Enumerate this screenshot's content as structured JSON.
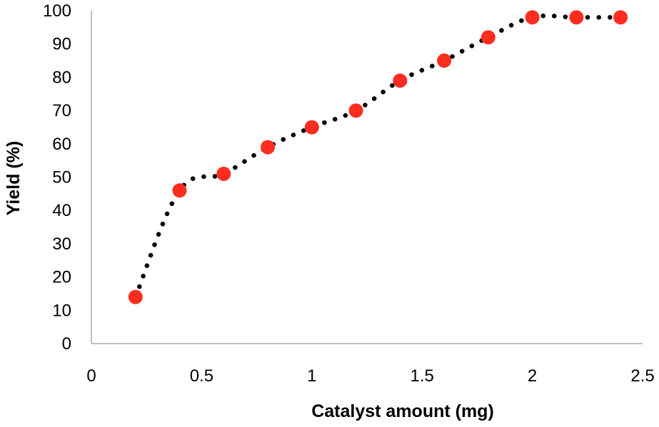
{
  "chart_data": {
    "type": "scatter",
    "title": "",
    "xlabel": "Catalyst amount (mg)",
    "ylabel": "Yield (%)",
    "xlim": [
      0,
      2.5
    ],
    "ylim": [
      0,
      100
    ],
    "x_ticks": [
      "0",
      "0.5",
      "1",
      "1.5",
      "2",
      "2.5"
    ],
    "y_ticks": [
      "0",
      "10",
      "20",
      "30",
      "40",
      "50",
      "60",
      "70",
      "80",
      "90",
      "100"
    ],
    "grid": false,
    "legend": "none",
    "series": [
      {
        "x": [
          0.2,
          0.4,
          0.6,
          0.8,
          1.0,
          1.2,
          1.4,
          1.6,
          1.8,
          2.0,
          2.2,
          2.4
        ],
        "y": [
          14,
          46,
          51,
          59,
          65,
          70,
          79,
          85,
          92,
          98,
          98,
          98
        ],
        "marker_color": "#ff2d20",
        "trendline": "dotted smooth",
        "trendline_color": "#000000"
      }
    ]
  }
}
